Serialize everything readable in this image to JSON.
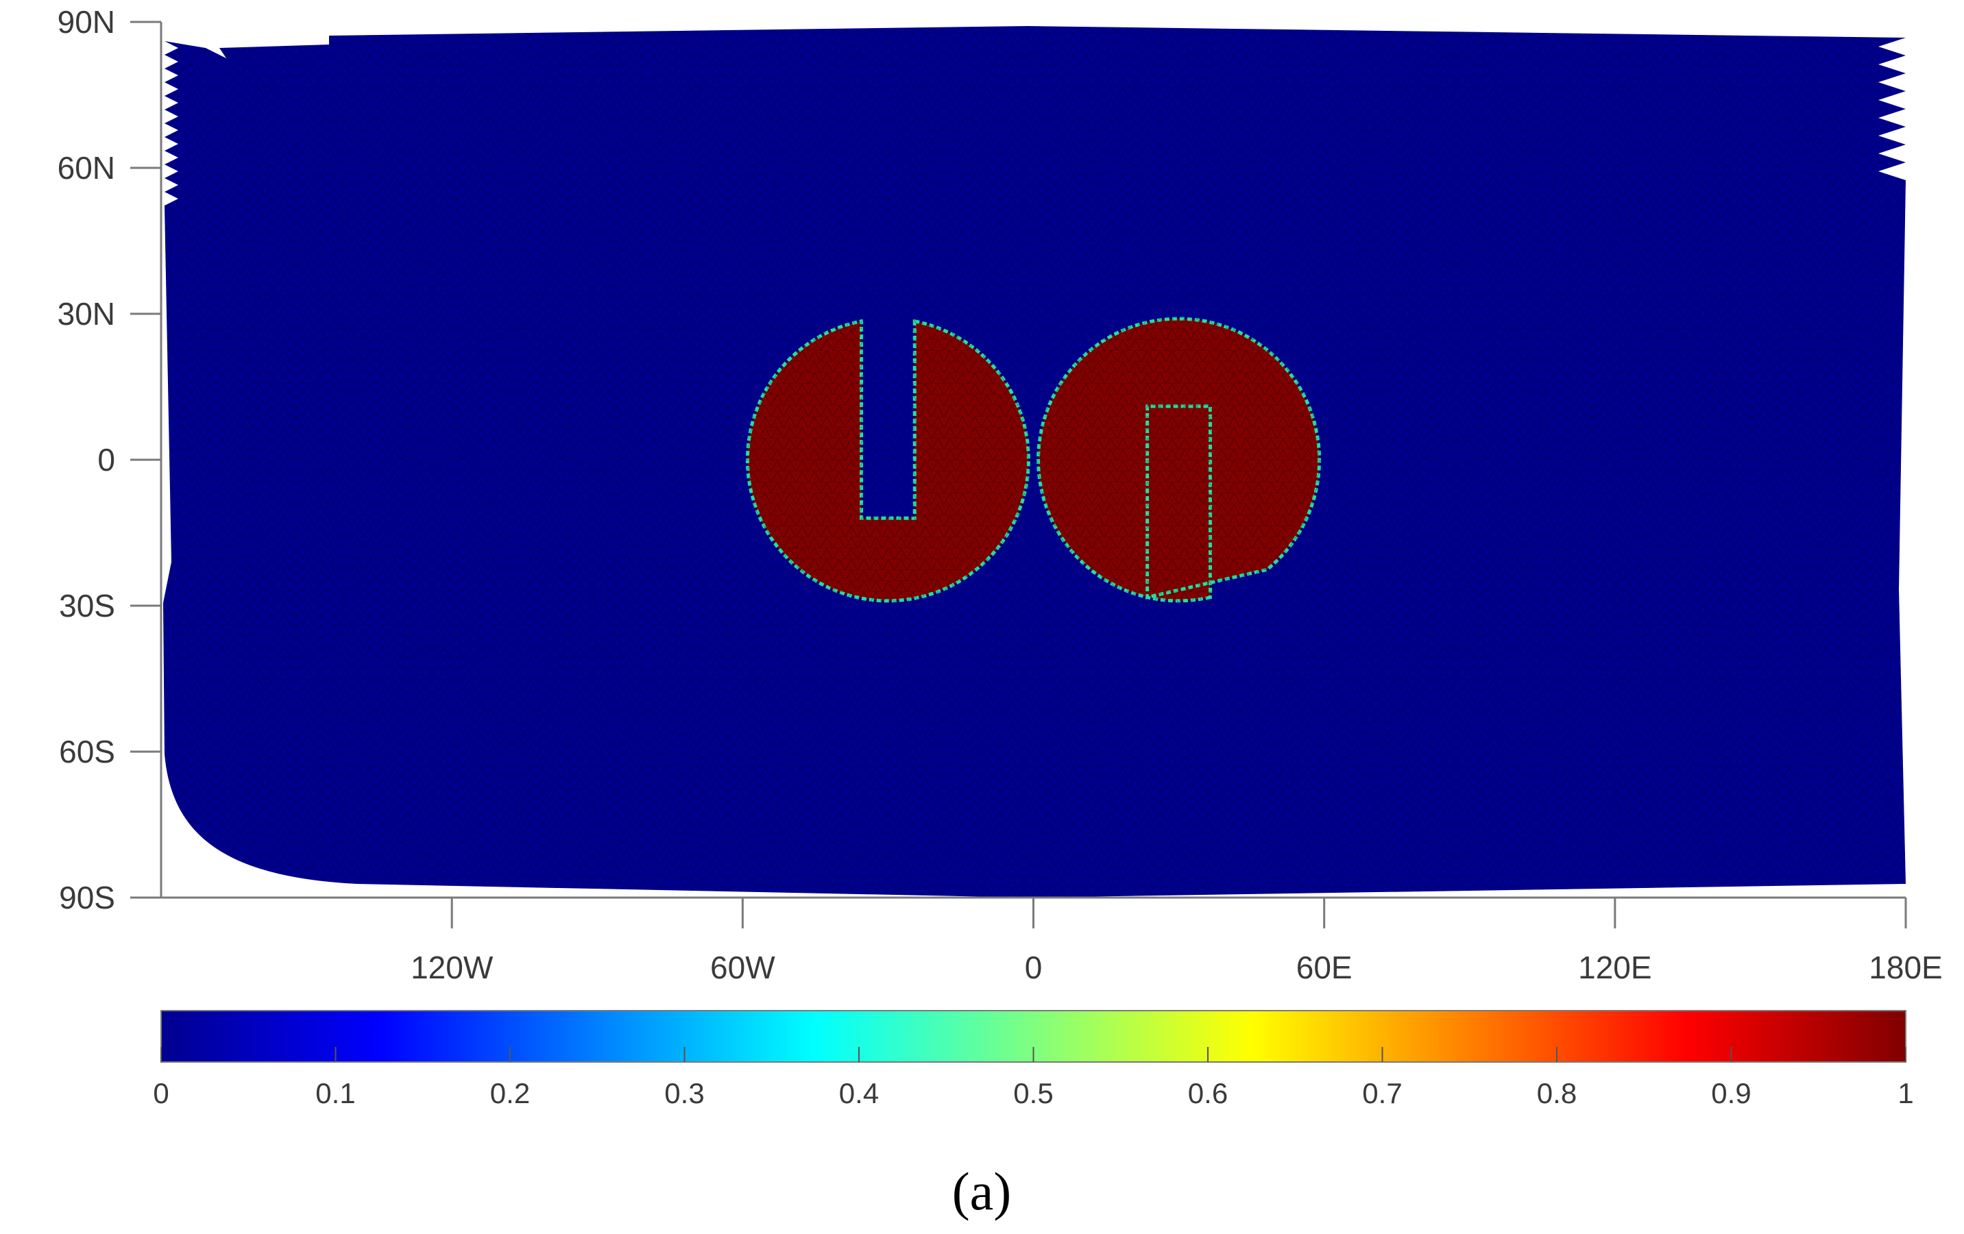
{
  "chart_data": {
    "type": "heatmap",
    "title": "",
    "xlabel": "",
    "ylabel": "",
    "projection": "equirectangular",
    "mesh": "triangulated sphere (hexagonal-like cells)",
    "xlim": [
      -180,
      180
    ],
    "ylim": [
      -90,
      90
    ],
    "x_ticks": [
      {
        "value": -120,
        "label": "120W"
      },
      {
        "value": -60,
        "label": "60W"
      },
      {
        "value": 0,
        "label": "0"
      },
      {
        "value": 60,
        "label": "60E"
      },
      {
        "value": 120,
        "label": "120E"
      },
      {
        "value": 180,
        "label": "180E"
      }
    ],
    "y_ticks": [
      {
        "value": 90,
        "label": "90N"
      },
      {
        "value": 60,
        "label": "60N"
      },
      {
        "value": 30,
        "label": "30N"
      },
      {
        "value": 0,
        "label": "0"
      },
      {
        "value": -30,
        "label": "30S"
      },
      {
        "value": -60,
        "label": "60S"
      },
      {
        "value": -90,
        "label": "90S"
      }
    ],
    "background_value": 0,
    "features": [
      {
        "shape": "slotted-cylinder",
        "value": 1,
        "center": [
          -30,
          0
        ],
        "radius_deg": 29,
        "slot": {
          "opening": "north",
          "half_width_deg": 5.5,
          "inner_end_lat": -12
        }
      },
      {
        "shape": "slotted-cylinder",
        "value": 1,
        "center": [
          30,
          0
        ],
        "radius_deg": 29,
        "slot": {
          "opening": "south",
          "half_width_deg": 6.5,
          "inner_end_lat": 11
        }
      }
    ],
    "colorbar": {
      "colormap": "jet",
      "range": [
        0,
        1
      ],
      "ticks": [
        {
          "value": 0,
          "label": "0"
        },
        {
          "value": 0.1,
          "label": "0.1"
        },
        {
          "value": 0.2,
          "label": "0.2"
        },
        {
          "value": 0.3,
          "label": "0.3"
        },
        {
          "value": 0.4,
          "label": "0.4"
        },
        {
          "value": 0.5,
          "label": "0.5"
        },
        {
          "value": 0.6,
          "label": "0.6"
        },
        {
          "value": 0.7,
          "label": "0.7"
        },
        {
          "value": 0.8,
          "label": "0.8"
        },
        {
          "value": 0.9,
          "label": "0.9"
        },
        {
          "value": 1,
          "label": "1"
        }
      ],
      "placement": "bottom"
    },
    "colors": {
      "low": "#00008f",
      "high": "#800000",
      "edge": "#20e0a0",
      "axis": "#7a7a7a"
    }
  },
  "caption": "(a)"
}
